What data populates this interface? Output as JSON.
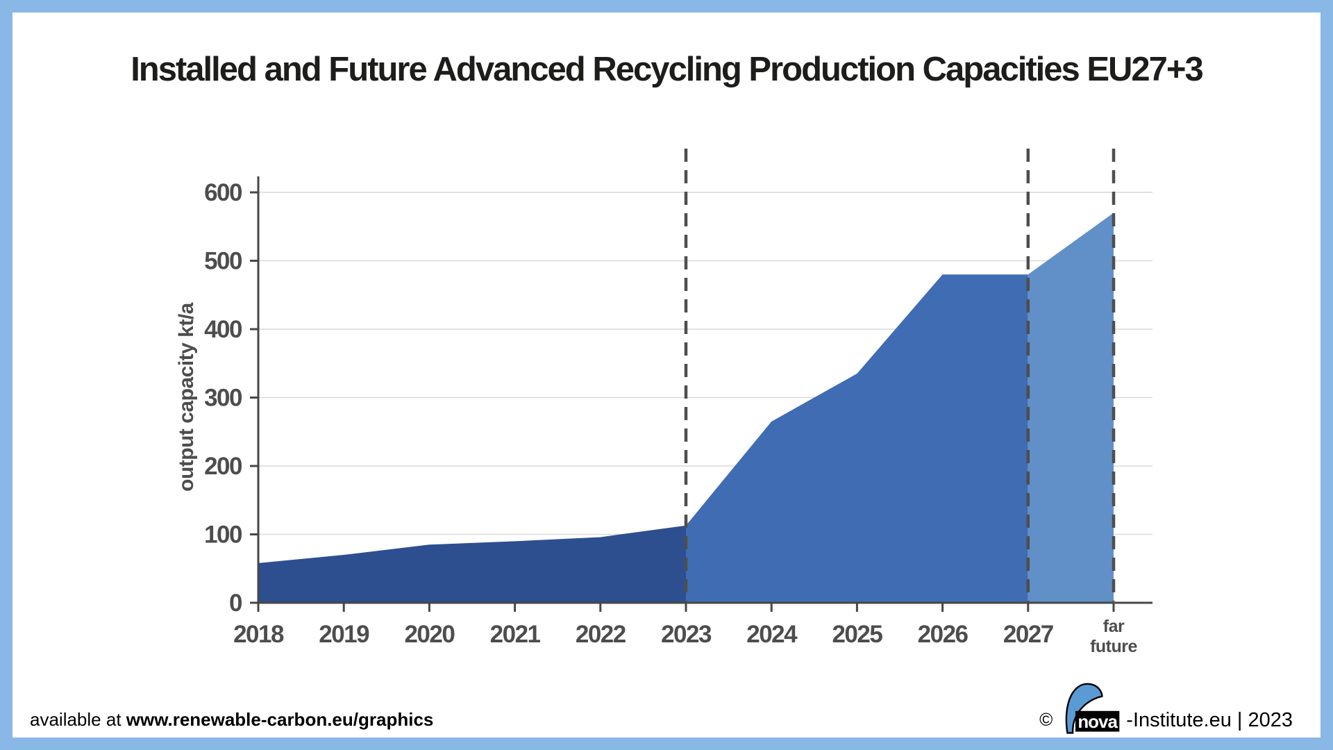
{
  "frame": {
    "border_color": "#89b8e6",
    "background": "#ffffff"
  },
  "title": "Installed and Future Advanced Recycling Production Capacities EU27+3",
  "footer": {
    "available_prefix": "available at ",
    "available_link": "www.renewable-carbon.eu/graphics",
    "copyright_symbol": "©",
    "logo_text": "nova",
    "copyright_suffix": "-Institute.eu | 2023"
  },
  "chart_data": {
    "type": "area",
    "title": "Installed and Future Advanced Recycling Production Capacities EU27+3",
    "xlabel": "",
    "ylabel": "output capacity kt/a",
    "categories": [
      "2018",
      "2019",
      "2020",
      "2021",
      "2022",
      "2023",
      "2024",
      "2025",
      "2026",
      "2027",
      "far future"
    ],
    "values": [
      58,
      70,
      85,
      90,
      96,
      113,
      265,
      335,
      480,
      480,
      570
    ],
    "ylim": [
      0,
      600
    ],
    "y_ticks": [
      0,
      100,
      200,
      300,
      400,
      500,
      600
    ],
    "grid": true,
    "legend": "none",
    "segments": [
      {
        "name": "2018-2023",
        "from": "2018",
        "to": "2023",
        "color": "#2e4f8f"
      },
      {
        "name": "2023-2027",
        "from": "2023",
        "to": "2027",
        "color": "#3f6cb3"
      },
      {
        "name": "2027-far future",
        "from": "2027",
        "to": "far future",
        "color": "#6190c9"
      }
    ],
    "dashed_markers": [
      "2023",
      "2027",
      "far future"
    ],
    "colors": {
      "grid": "#d9d9d9",
      "axis": "#474747",
      "tick_label": "#4d4d4d",
      "dashed": "#4e4e4e"
    }
  }
}
